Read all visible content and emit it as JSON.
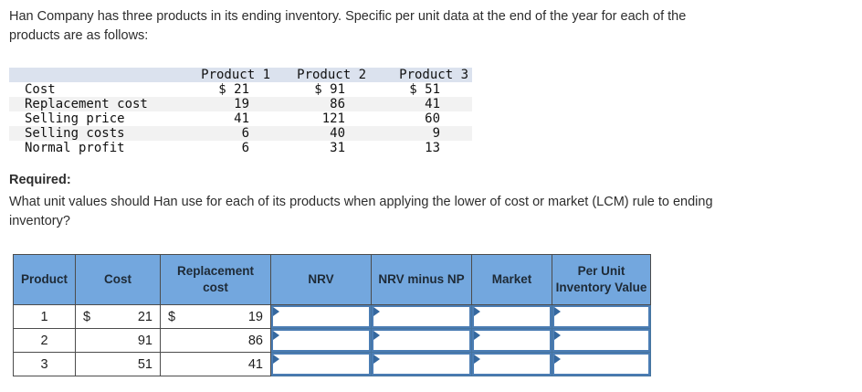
{
  "intro": {
    "lines": [
      "Han Company has three products in its ending inventory. Specific per unit data at the end of the year for each of the",
      "products are as follows:"
    ]
  },
  "data_table": {
    "headers": [
      "",
      "Product 1",
      "Product 2",
      "Product 3"
    ],
    "rows": [
      {
        "label": "Cost",
        "values": [
          "$ 21",
          "$ 91",
          "$ 51"
        ]
      },
      {
        "label": "Replacement cost",
        "values": [
          "19",
          "86",
          "41"
        ]
      },
      {
        "label": "Selling price",
        "values": [
          "41",
          "121",
          "60"
        ]
      },
      {
        "label": "Selling costs",
        "values": [
          "6",
          "40",
          "9"
        ]
      },
      {
        "label": "Normal profit",
        "values": [
          "6",
          "31",
          "13"
        ]
      }
    ]
  },
  "required": {
    "label": "Required:",
    "question_lines": [
      "What unit values should Han use for each of its products when applying the lower of cost or market (LCM) rule to ending",
      "inventory?"
    ]
  },
  "answer_table": {
    "headers": [
      "Product",
      "Cost",
      "Replacement cost",
      "NRV",
      "NRV minus NP",
      "Market",
      "Per Unit Inventory Value"
    ],
    "rows": [
      {
        "product": "1",
        "cost_symbol": "$",
        "cost": "21",
        "replacement_symbol": "$",
        "replacement": "19",
        "inputs": [
          "",
          "",
          "",
          ""
        ]
      },
      {
        "product": "2",
        "cost_symbol": "",
        "cost": "91",
        "replacement_symbol": "",
        "replacement": "86",
        "inputs": [
          "",
          "",
          "",
          ""
        ]
      },
      {
        "product": "3",
        "cost_symbol": "",
        "cost": "51",
        "replacement_symbol": "",
        "replacement": "41",
        "inputs": [
          "",
          "",
          "",
          ""
        ]
      }
    ]
  },
  "colors": {
    "answer_header_bg": "#73a7de",
    "input_border": "#4b7db4",
    "input_flag": "#35689f",
    "data_header_bg": "#dbe2ee",
    "zebra_stripe": "#f2f2f2",
    "grid_border": "#4c4c4c"
  }
}
